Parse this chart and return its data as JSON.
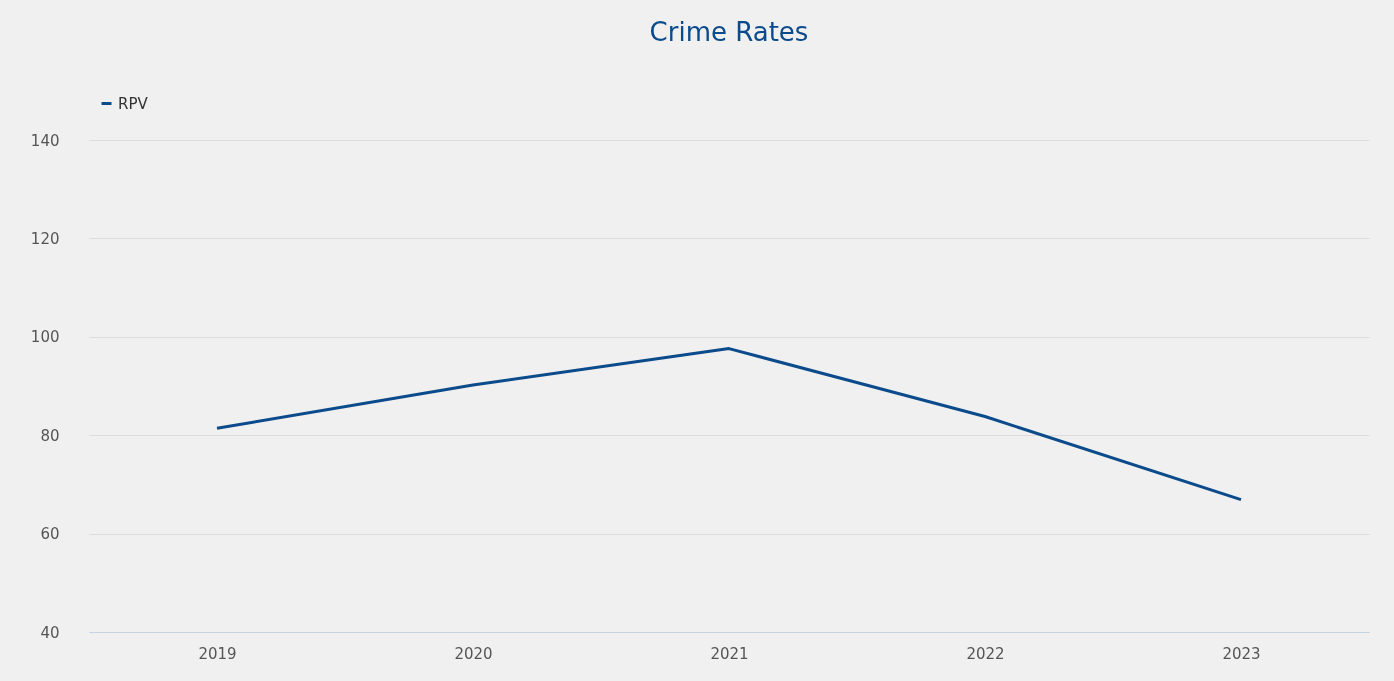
{
  "chart_data": {
    "type": "line",
    "title": "Crime Rates",
    "categories": [
      "2019",
      "2020",
      "2021",
      "2022",
      "2023"
    ],
    "series": [
      {
        "name": "RPV",
        "color": "#0b4a8b",
        "values": [
          81.4,
          90.2,
          97.6,
          83.8,
          66.9
        ]
      }
    ],
    "ylim": [
      40,
      140
    ],
    "yticks": [
      40,
      60,
      80,
      100,
      120,
      140
    ],
    "grid": "y",
    "legend": "top",
    "marker": "none",
    "line_style": "solid"
  }
}
